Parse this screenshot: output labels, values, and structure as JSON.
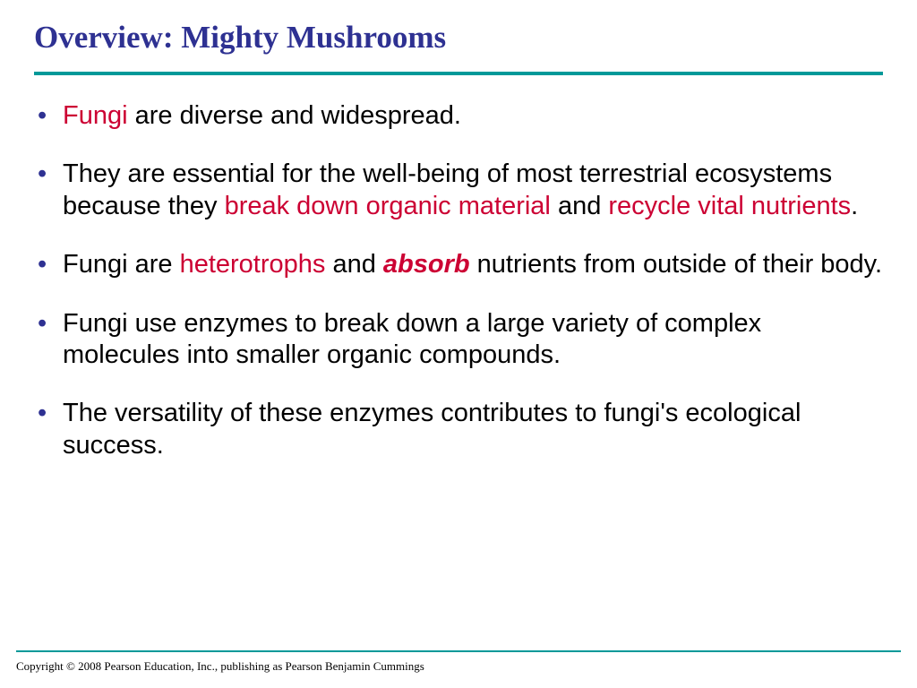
{
  "title": "Overview: Mighty Mushrooms",
  "title_color": "#2e3192",
  "rule_color": "#009999",
  "highlight_color": "#cc0033",
  "bullets": {
    "b1": {
      "t1": "Fungi",
      "t2": " are diverse and widespread."
    },
    "b2": {
      "t1": "They are essential for the well-being of most terrestrial ecosystems because they ",
      "t2": "break down organic material",
      "t3": " and ",
      "t4": "recycle vital nutrients",
      "t5": "."
    },
    "b3": {
      "t1": "Fungi are ",
      "t2": "heterotrophs",
      "t3": " and ",
      "t4": "absorb",
      "t5": " nutrients from outside of their body."
    },
    "b4": {
      "t1": "Fungi use enzymes to break down a large variety of complex molecules into smaller organic compounds."
    },
    "b5": {
      "t1": "The versatility of these enzymes contributes to fungi's ecological success."
    }
  },
  "copyright": "Copyright © 2008 Pearson Education, Inc., publishing  as Pearson Benjamin Cummings"
}
